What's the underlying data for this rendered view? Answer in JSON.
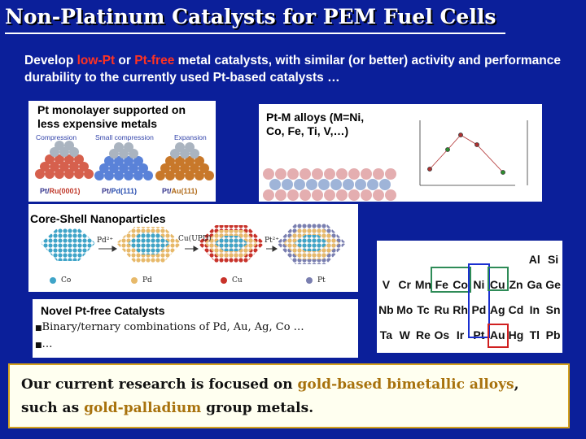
{
  "title": "Non-Platinum Catalysts for PEM Fuel Cells",
  "intro": {
    "part1": "Develop ",
    "low_pt": "low-Pt",
    "part2": " or ",
    "pt_free": "Pt-free",
    "part3": " metal catalysts, with similar (or better) activity and performance durability to the currently used Pt-based catalysts …"
  },
  "monolayer": {
    "title_line1": "Pt monolayer supported on",
    "title_line2": "less expensive metals",
    "headers": [
      "Compression",
      "Small compression",
      "Expansion"
    ],
    "substrates": [
      {
        "pt": "Pt/",
        "metal": "Ru(0001)",
        "color": "#d6604d"
      },
      {
        "pt": "Pt/",
        "metal": "Pd(111)",
        "color": "#5a82d8"
      },
      {
        "pt": "Pt/",
        "metal": "Au(111)",
        "color": "#c8782a"
      }
    ]
  },
  "alloys": {
    "line1": "Pt-M alloys (M=Ni,",
    "line2": "Co, Fe, Ti, V,…)"
  },
  "coreshell": {
    "title": "Core-Shell Nanoparticles",
    "ions": [
      "Pd²⁺",
      "Cu(UPD)",
      "Pt²⁺"
    ],
    "legend": [
      {
        "label": "Co",
        "color": "#3fa4c8"
      },
      {
        "label": "Pd",
        "color": "#e7b96a"
      },
      {
        "label": "Cu",
        "color": "#c8322a"
      },
      {
        "label": "Pt",
        "color": "#7a7fb0"
      }
    ]
  },
  "novel": {
    "title": "Novel Pt-free Catalysts",
    "bullets": [
      "Binary/ternary combinations of Pd, Au, Ag, Co …",
      "…"
    ]
  },
  "periodic": {
    "rows": [
      [
        "V",
        "Cr",
        "Mn",
        "Fe",
        "Co",
        "Ni",
        "Cu",
        "Zn",
        "Ga",
        "Ge"
      ],
      [
        "Nb",
        "Mo",
        "Tc",
        "Ru",
        "Rh",
        "Pd",
        "Ag",
        "Cd",
        "In",
        "Sn"
      ],
      [
        "Ta",
        "W",
        "Re",
        "Os",
        "Ir",
        "Pt",
        "Au",
        "Hg",
        "Tl",
        "Pb"
      ]
    ],
    "top_right": [
      "Al",
      "Si"
    ]
  },
  "conclusion": {
    "part1": "Our current research is focused on ",
    "gold_alloys": "gold-based bimetallic alloys",
    "part2": ",",
    "part3": "such as ",
    "gold_pd": "gold-palladium",
    "part4": " group metals."
  }
}
